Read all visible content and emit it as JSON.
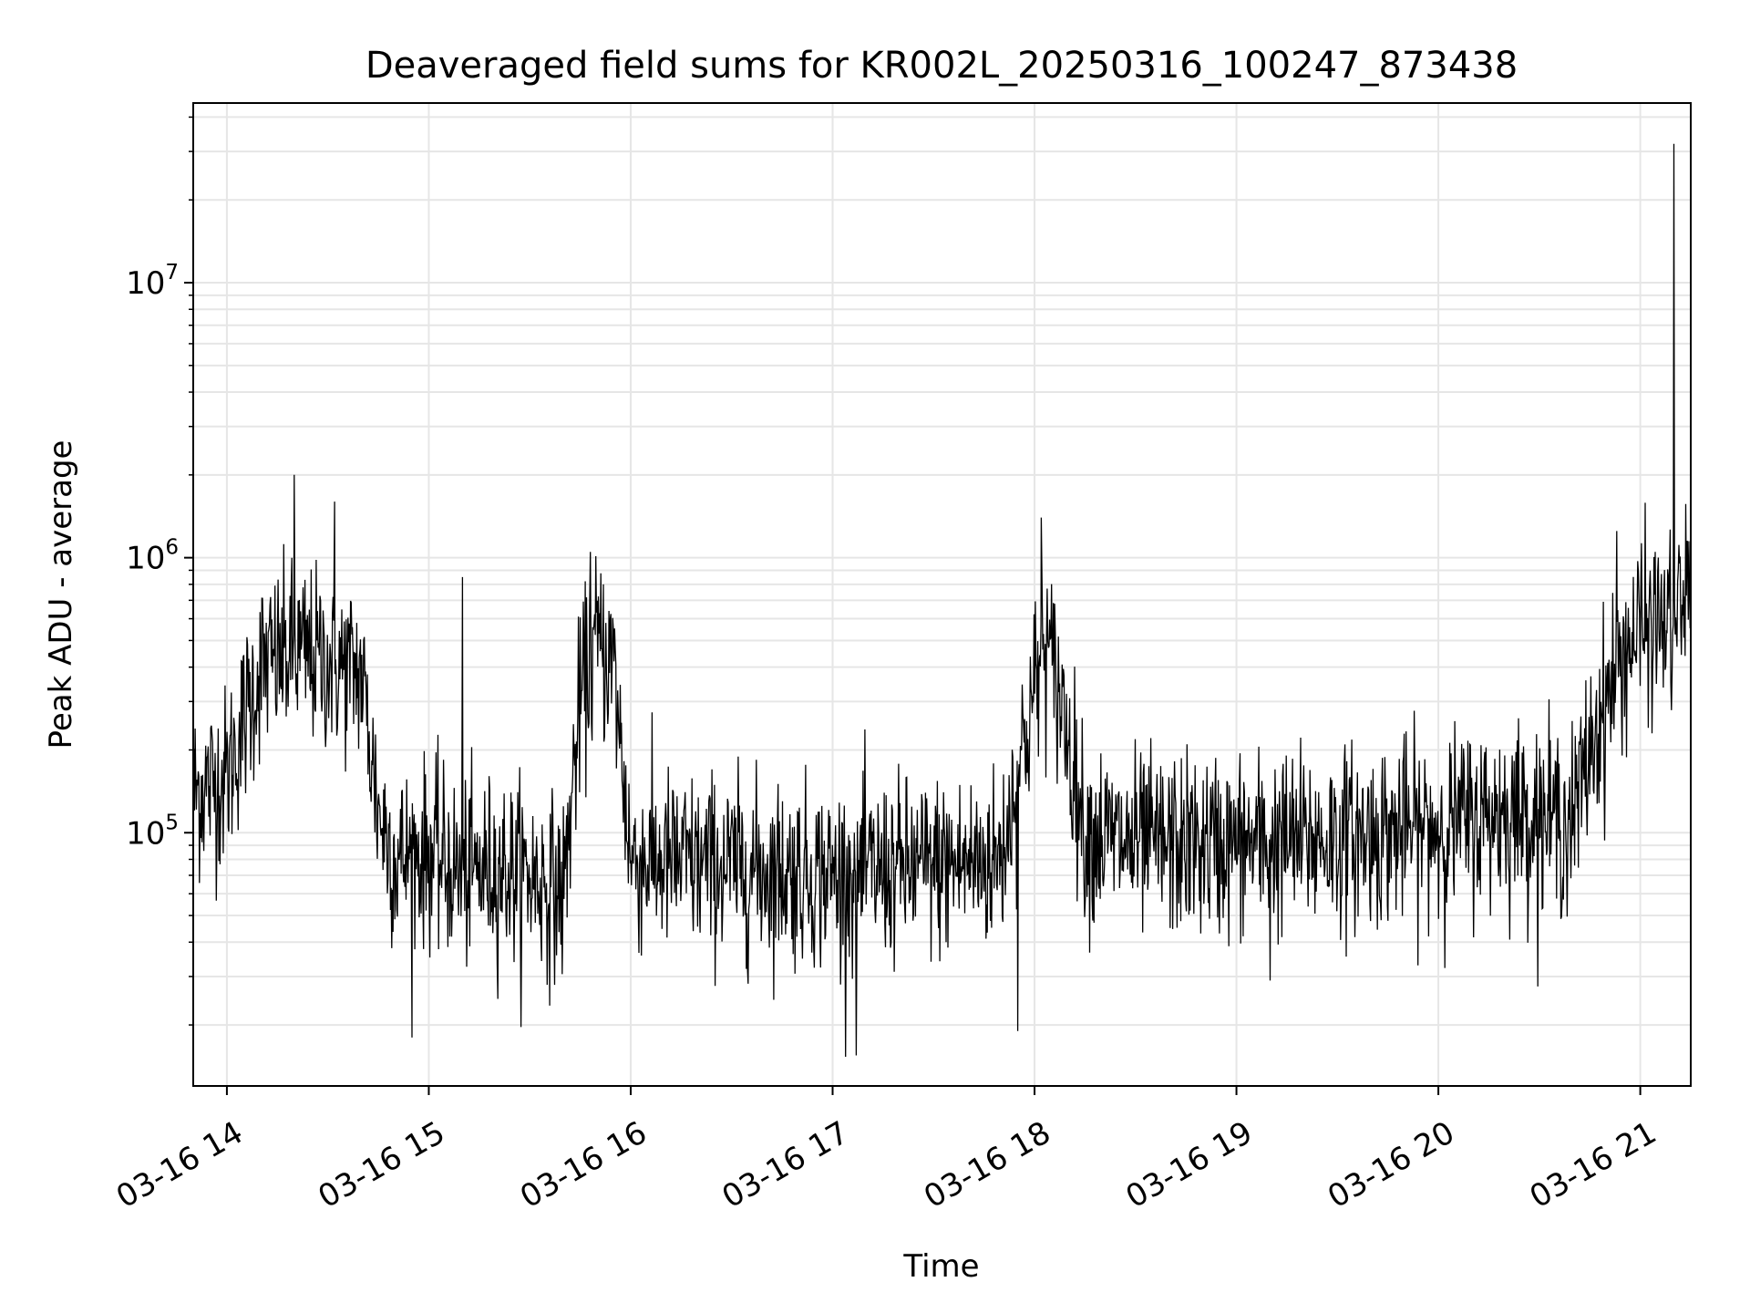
{
  "chart_data": {
    "type": "line",
    "title": "Deaveraged field sums for KR002L_20250316_100247_873438",
    "xlabel": "Time",
    "ylabel": "Peak ADU - average",
    "yscale": "log",
    "ylim": [
      12000,
      45000000
    ],
    "xlim": [
      "03-16 13:50",
      "03-16 21:15"
    ],
    "grid": true,
    "line_color": "#000000",
    "grid_color": "#e6e6e6",
    "x_ticks": [
      {
        "value": "03-16 14:00",
        "label": "03-16 14"
      },
      {
        "value": "03-16 15:00",
        "label": "03-16 15"
      },
      {
        "value": "03-16 16:00",
        "label": "03-16 16"
      },
      {
        "value": "03-16 17:00",
        "label": "03-16 17"
      },
      {
        "value": "03-16 18:00",
        "label": "03-16 18"
      },
      {
        "value": "03-16 19:00",
        "label": "03-16 19"
      },
      {
        "value": "03-16 20:00",
        "label": "03-16 20"
      },
      {
        "value": "03-16 21:00",
        "label": "03-16 21"
      }
    ],
    "y_ticks": [
      {
        "value": 100000,
        "base": "10",
        "exp": "5"
      },
      {
        "value": 1000000,
        "base": "10",
        "exp": "6"
      },
      {
        "value": 10000000,
        "base": "10",
        "exp": "7"
      }
    ],
    "series": [
      {
        "x": [
          "03-16 13:50",
          "03-16 14:00",
          "03-16 14:10",
          "03-16 14:20",
          "03-16 14:30",
          "03-16 14:40",
          "03-16 14:45",
          "03-16 14:50",
          "03-16 15:00",
          "03-16 15:10",
          "03-16 15:20",
          "03-16 15:30",
          "03-16 15:40",
          "03-16 15:45",
          "03-16 15:50",
          "03-16 15:55",
          "03-16 16:00",
          "03-16 16:30",
          "03-16 17:00",
          "03-16 17:30",
          "03-16 17:50",
          "03-16 17:58",
          "03-16 18:03",
          "03-16 18:08",
          "03-16 18:15",
          "03-16 18:30",
          "03-16 19:00",
          "03-16 19:30",
          "03-16 20:00",
          "03-16 20:20",
          "03-16 20:40",
          "03-16 20:45",
          "03-16 20:55",
          "03-16 21:00",
          "03-16 21:10",
          "03-16 21:15"
        ],
        "y": [
          140000,
          160000,
          400000,
          450000,
          420000,
          380000,
          120000,
          80000,
          85000,
          70000,
          75000,
          70000,
          60000,
          300000,
          500000,
          400000,
          80000,
          75000,
          70000,
          75000,
          80000,
          250000,
          500000,
          300000,
          100000,
          90000,
          90000,
          95000,
          105000,
          120000,
          110000,
          200000,
          450000,
          550000,
          600000,
          700000
        ],
        "noise_log10_amplitude": 0.3,
        "peaks": [
          {
            "x": "03-16 14:20",
            "y": 2000000
          },
          {
            "x": "03-16 14:32",
            "y": 1600000
          },
          {
            "x": "03-16 15:10",
            "y": 850000
          },
          {
            "x": "03-16 15:48",
            "y": 1050000
          },
          {
            "x": "03-16 18:02",
            "y": 1400000
          },
          {
            "x": "03-16 20:53",
            "y": 1250000
          },
          {
            "x": "03-16 21:10",
            "y": 32000000
          },
          {
            "x": "03-16 21:14",
            "y": 1150000
          }
        ],
        "troughs": [
          {
            "x": "03-16 14:55",
            "y": 18000
          },
          {
            "x": "03-16 17:07",
            "y": 15500
          },
          {
            "x": "03-16 17:55",
            "y": 19000
          },
          {
            "x": "03-16 19:10",
            "y": 29000
          }
        ]
      }
    ]
  }
}
